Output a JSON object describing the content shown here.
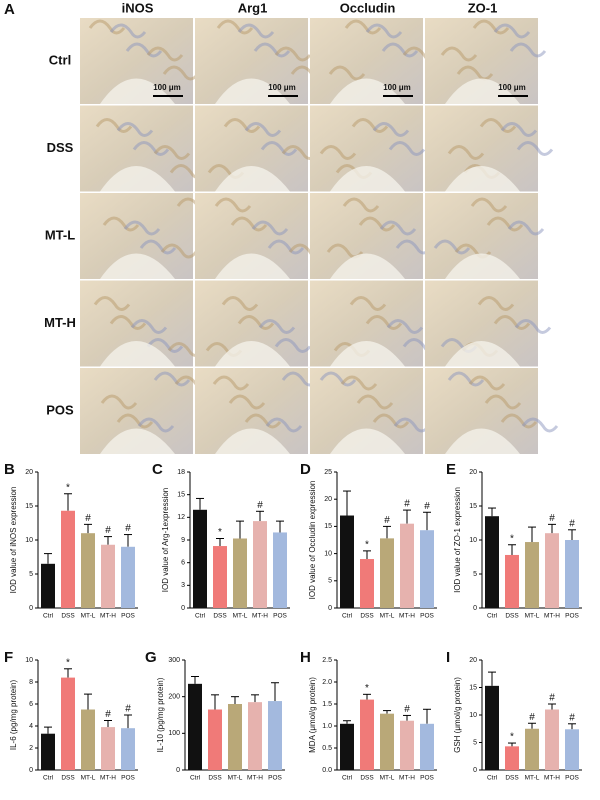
{
  "panel_a": {
    "letter": "A",
    "columns": [
      "iNOS",
      "Arg1",
      "Occludin",
      "ZO-1"
    ],
    "rows": [
      "Ctrl",
      "DSS",
      "MT-L",
      "MT-H",
      "POS"
    ],
    "scale_bar": "100 μm"
  },
  "bar_colors": [
    "#111111",
    "#f07a78",
    "#b9a878",
    "#e6b2ae",
    "#a3b9de"
  ],
  "chart_data": [
    {
      "type": "bar",
      "letter": "B",
      "y_label": "IOD value of iNOS expression",
      "categories": [
        "Ctrl",
        "DSS",
        "MT-L",
        "MT-H",
        "POS"
      ],
      "values": [
        6.5,
        14.3,
        11,
        9.3,
        9
      ],
      "errors": [
        1.5,
        2.5,
        1.3,
        1.2,
        1.8
      ],
      "markers": [
        null,
        "*",
        "#",
        "#",
        "#"
      ],
      "ylim": [
        0,
        20
      ],
      "yticks": [
        0,
        5,
        10,
        15,
        20
      ]
    },
    {
      "type": "bar",
      "letter": "C",
      "y_label": "IOD value of Arg-1expression",
      "categories": [
        "Ctrl",
        "DSS",
        "MT-L",
        "MT-H",
        "POS"
      ],
      "values": [
        13,
        8.2,
        9.2,
        11.5,
        10
      ],
      "errors": [
        1.5,
        1,
        2.3,
        1.3,
        1.5
      ],
      "markers": [
        null,
        "*",
        null,
        "#",
        null
      ],
      "ylim": [
        0,
        18
      ],
      "yticks": [
        0,
        3,
        6,
        9,
        12,
        15,
        18
      ]
    },
    {
      "type": "bar",
      "letter": "D",
      "y_label": "IOD value of Occludin expression",
      "categories": [
        "Ctrl",
        "DSS",
        "MT-L",
        "MT-H",
        "POS"
      ],
      "values": [
        17,
        9,
        12.8,
        15.5,
        14.3
      ],
      "errors": [
        4.5,
        1.5,
        2.2,
        2.5,
        3.3
      ],
      "markers": [
        null,
        "*",
        "#",
        "#",
        "#"
      ],
      "ylim": [
        0,
        25
      ],
      "yticks": [
        0,
        5,
        10,
        15,
        20,
        25
      ]
    },
    {
      "type": "bar",
      "letter": "E",
      "y_label": "IOD value of ZO-1 expression",
      "categories": [
        "Ctrl",
        "DSS",
        "MT-L",
        "MT-H",
        "POS"
      ],
      "values": [
        13.5,
        7.8,
        9.7,
        11,
        10
      ],
      "errors": [
        1.2,
        1.5,
        2.2,
        1.3,
        1.5
      ],
      "markers": [
        null,
        "*",
        null,
        "#",
        "#"
      ],
      "ylim": [
        0,
        20
      ],
      "yticks": [
        0,
        5,
        10,
        15,
        20
      ]
    },
    {
      "type": "bar",
      "letter": "F",
      "y_label": "IL-6 (pg/mg protein)",
      "categories": [
        "Ctrl",
        "DSS",
        "MT-L",
        "MT-H",
        "POS"
      ],
      "values": [
        3.3,
        8.4,
        5.5,
        3.9,
        3.8
      ],
      "errors": [
        0.6,
        0.8,
        1.4,
        0.6,
        1.2
      ],
      "markers": [
        null,
        "*",
        null,
        "#",
        "#"
      ],
      "ylim": [
        0,
        10
      ],
      "yticks": [
        0,
        2,
        4,
        6,
        8,
        10
      ]
    },
    {
      "type": "bar",
      "letter": "G",
      "y_label": "IL-10 (pg/mg protein)",
      "categories": [
        "Ctrl",
        "DSS",
        "MT-L",
        "MT-H",
        "POS"
      ],
      "values": [
        235,
        165,
        180,
        185,
        188
      ],
      "errors": [
        20,
        40,
        20,
        20,
        50
      ],
      "markers": [
        null,
        null,
        null,
        null,
        null
      ],
      "ylim": [
        0,
        300
      ],
      "yticks": [
        0,
        100,
        200,
        300
      ]
    },
    {
      "type": "bar",
      "letter": "H",
      "y_label": "MDA (μmol/g protein)",
      "categories": [
        "Ctrl",
        "DSS",
        "MT-L",
        "MT-H",
        "POS"
      ],
      "values": [
        1.05,
        1.6,
        1.28,
        1.12,
        1.05
      ],
      "errors": [
        0.07,
        0.12,
        0.07,
        0.12,
        0.33
      ],
      "markers": [
        null,
        "*",
        null,
        "#",
        null
      ],
      "ylim": [
        0,
        2.5
      ],
      "yticks": [
        {
          "value": 0,
          "label": "0.0"
        },
        0.5,
        {
          "value": 1,
          "label": "1.0"
        },
        1.5,
        {
          "value": 2,
          "label": "2.0"
        },
        2.5
      ]
    },
    {
      "type": "bar",
      "letter": "I",
      "y_label": "GSH (μmol/g protein)",
      "categories": [
        "Ctrl",
        "DSS",
        "MT-L",
        "MT-H",
        "POS"
      ],
      "values": [
        15.3,
        4.3,
        7.5,
        11,
        7.4
      ],
      "errors": [
        2.5,
        0.6,
        1,
        1,
        1
      ],
      "markers": [
        null,
        "*",
        "#",
        "#",
        "#"
      ],
      "ylim": [
        0,
        20
      ],
      "yticks": [
        0,
        5,
        10,
        15,
        20
      ]
    }
  ]
}
